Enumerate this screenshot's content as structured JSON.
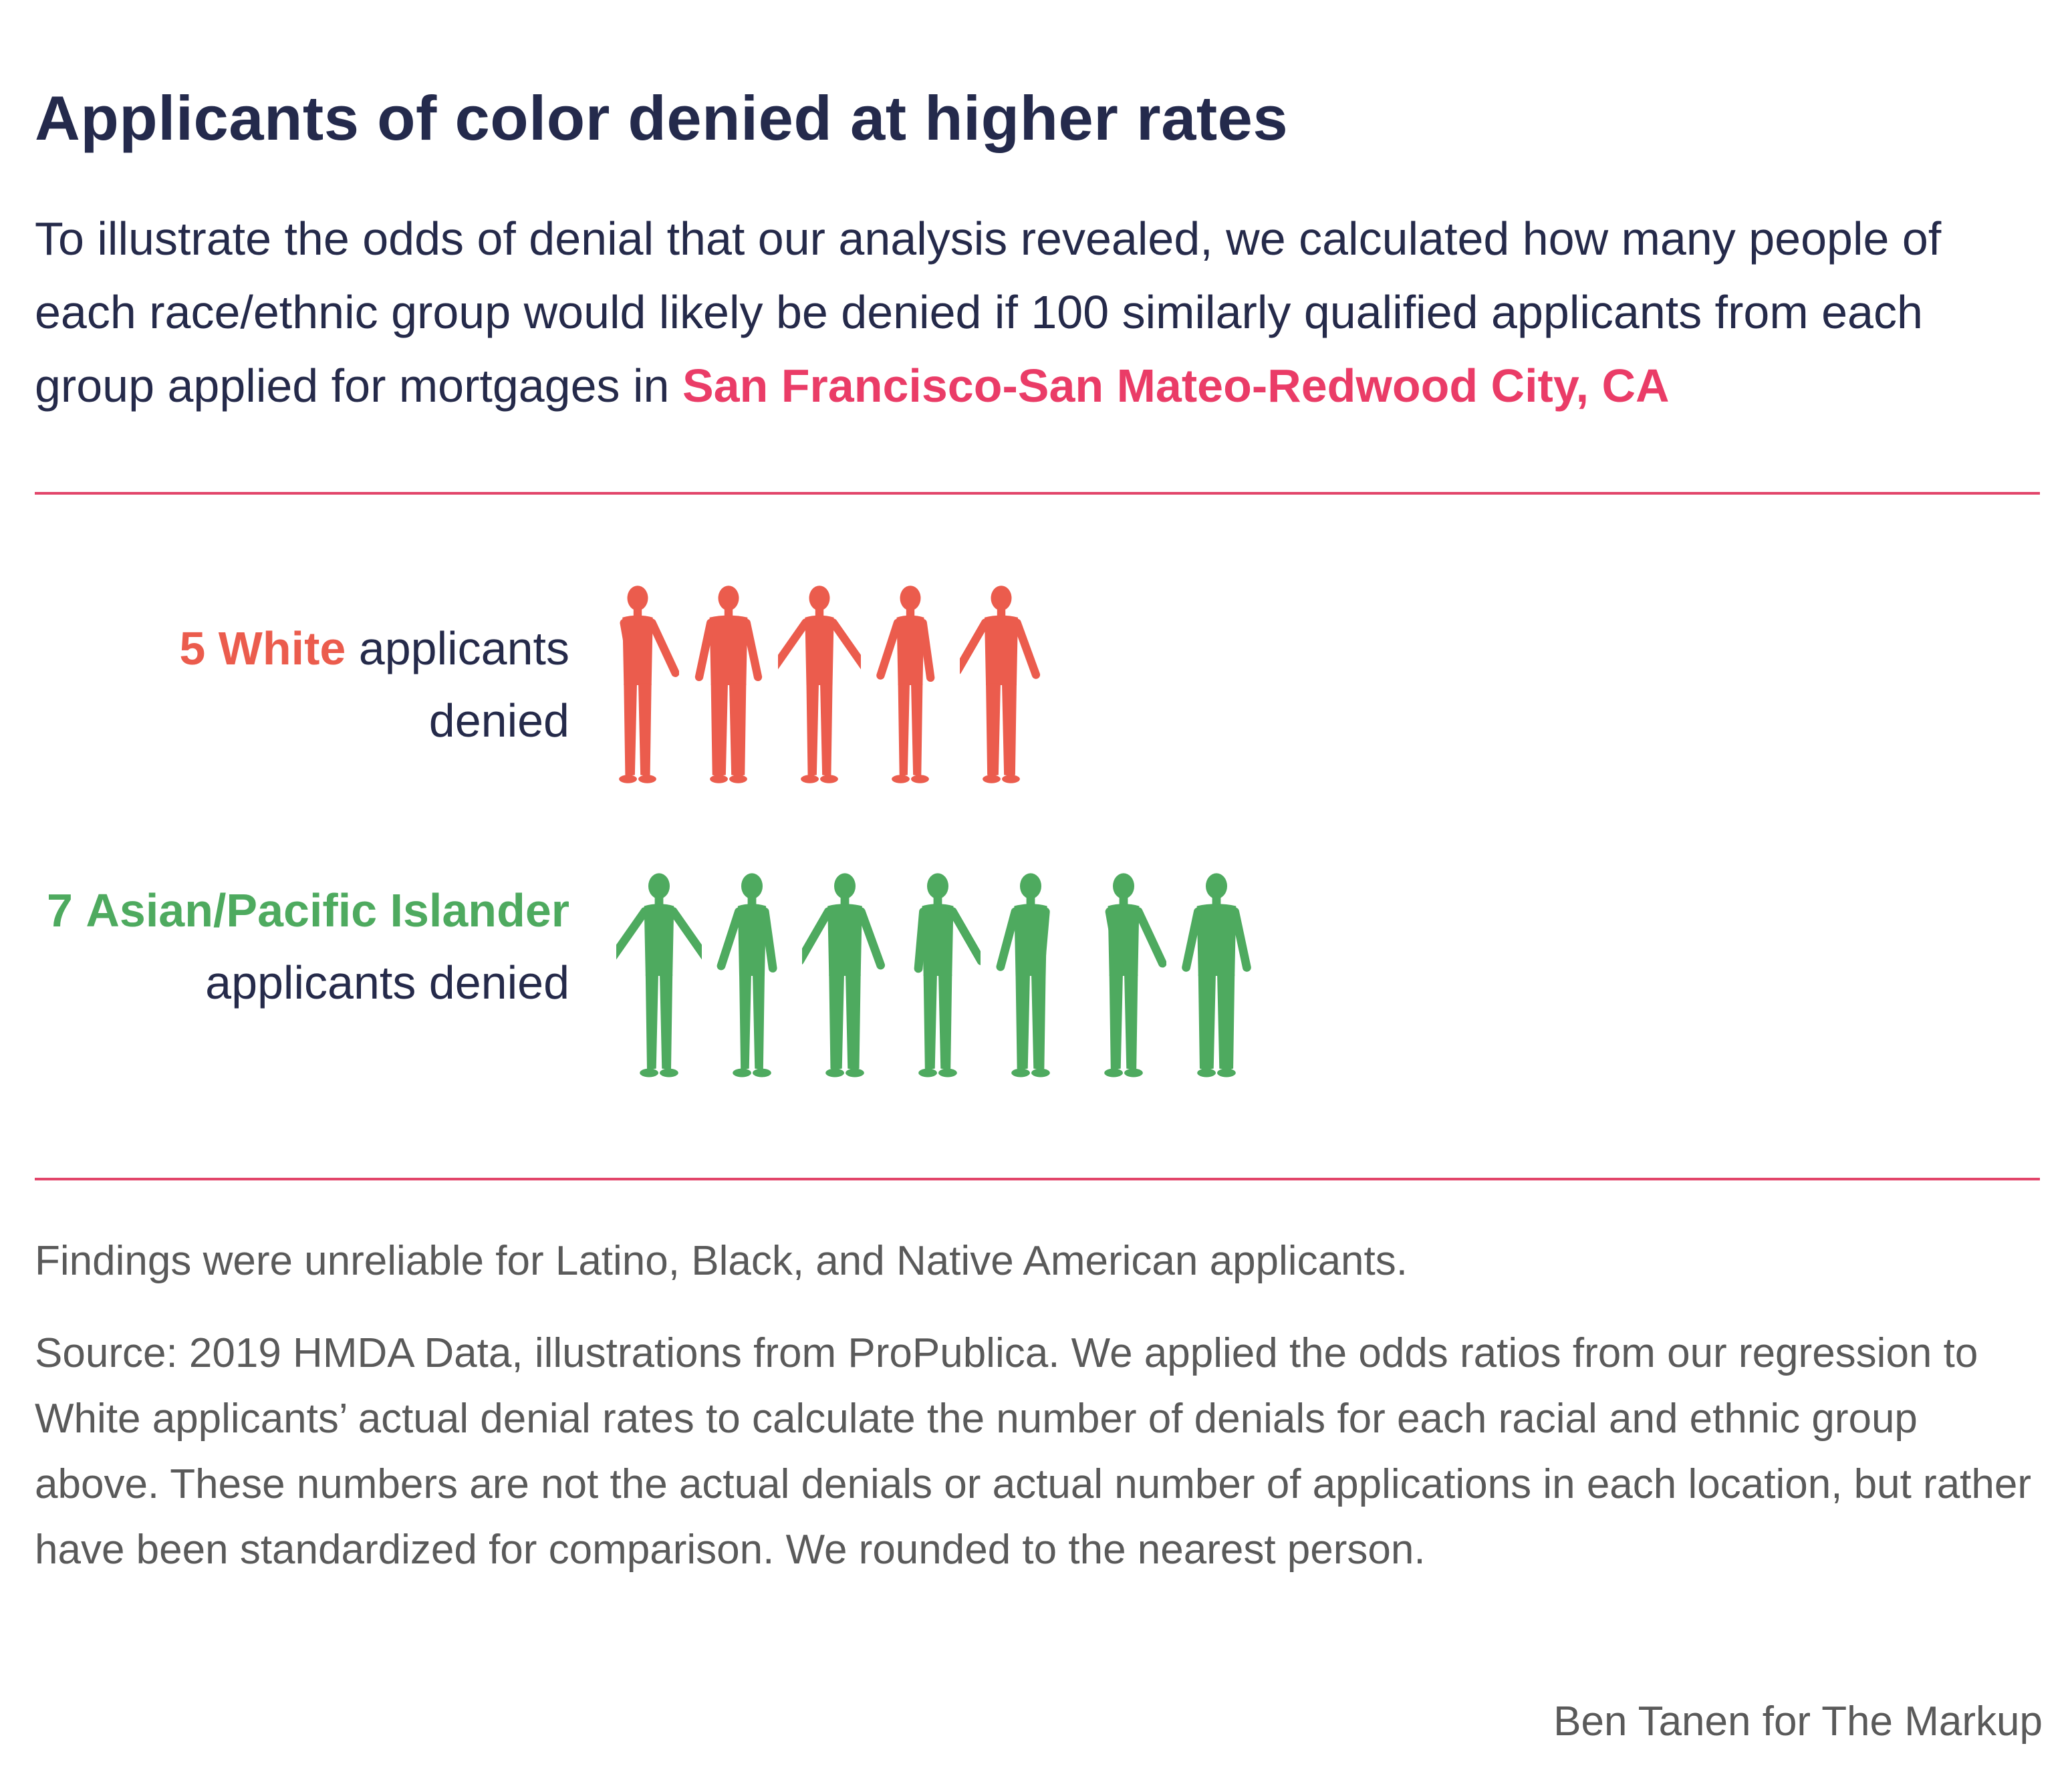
{
  "title": "Applicants of color denied at higher rates",
  "subtitle": {
    "text": "To illustrate the odds of denial that our analysis revealed, we calculated how many people of each race/ethnic group would likely be denied if 100 similarly qualified applicants from each group applied for mortgages in ",
    "place": "San Francisco-San Mateo-Redwood City, CA"
  },
  "chart_data": {
    "type": "pictograph",
    "unit": "applicants denied per 100 similarly qualified applicants",
    "series": [
      {
        "count": 5,
        "group": "White",
        "label_prefix": "5",
        "label_suffix": "applicants denied",
        "color": "#eb5c4d"
      },
      {
        "count": 7,
        "group": "Asian/Pacific Islander",
        "label_prefix": "7",
        "label_suffix": "applicants denied",
        "color": "#4eaa5f"
      }
    ]
  },
  "notes": {
    "unreliable": "Findings were unreliable for Latino, Black, and Native American applicants.",
    "source": "Source: 2019 HMDA Data, illustrations from ProPublica. We applied the odds ratios from our regression to White applicants’ actual denial rates to calculate the number of denials for each racial and ethnic group above. These numbers are not the actual denials or actual number of applications in each location, but rather have been standardized for comparison. We rounded to the nearest person."
  },
  "credit": "Ben Tanen for The Markup",
  "colors": {
    "title": "#242a4c",
    "accent": "#ea3c67",
    "rule": "#e2456a",
    "white_group": "#eb5c4d",
    "asian_group": "#4eaa5f",
    "note_text": "#5a5a5a"
  }
}
